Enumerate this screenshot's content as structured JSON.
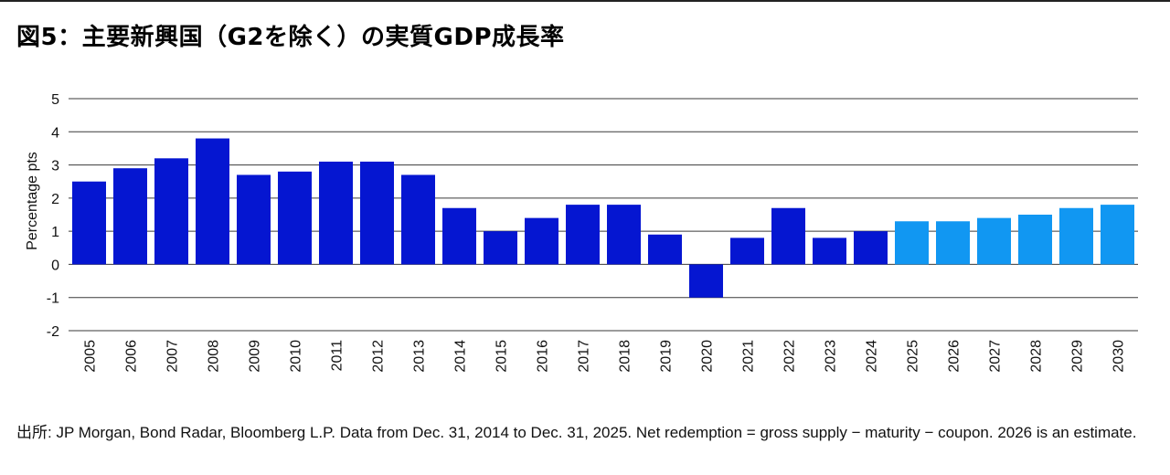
{
  "title": "図5：主要新興国（G2を除く）の実質GDP成長率",
  "footnote": "出所: JP Morgan, Bond Radar, Bloomberg L.P. Data from Dec. 31, 2014 to Dec. 31, 2025. Net redemption = gross supply − maturity − coupon. 2026 is an estimate.",
  "colors": {
    "actual": "#0516d1",
    "forecast": "#1197f2",
    "grid": "#3a3a3a"
  },
  "chart_data": {
    "type": "bar",
    "title": "",
    "xlabel": "",
    "ylabel": "Percentage pts",
    "ylim": [
      -2,
      5
    ],
    "yticks": [
      "5",
      "4",
      "3",
      "2",
      "1",
      "0",
      "-1",
      "-2"
    ],
    "grid": true,
    "categories": [
      "2005",
      "2006",
      "2007",
      "2008",
      "2009",
      "2010",
      "2011",
      "2012",
      "2013",
      "2014",
      "2015",
      "2016",
      "2017",
      "2018",
      "2019",
      "2020",
      "2021",
      "2022",
      "2023",
      "2024",
      "2025",
      "2026",
      "2027",
      "2028",
      "2029",
      "2030"
    ],
    "values": [
      2.5,
      2.9,
      3.2,
      3.8,
      2.7,
      2.8,
      3.1,
      3.1,
      2.7,
      1.7,
      1.0,
      1.4,
      1.8,
      1.8,
      0.9,
      -1.0,
      0.8,
      1.7,
      0.8,
      1.0,
      1.3,
      1.3,
      1.4,
      1.5,
      1.7,
      1.8
    ],
    "forecast_from": "2025"
  }
}
